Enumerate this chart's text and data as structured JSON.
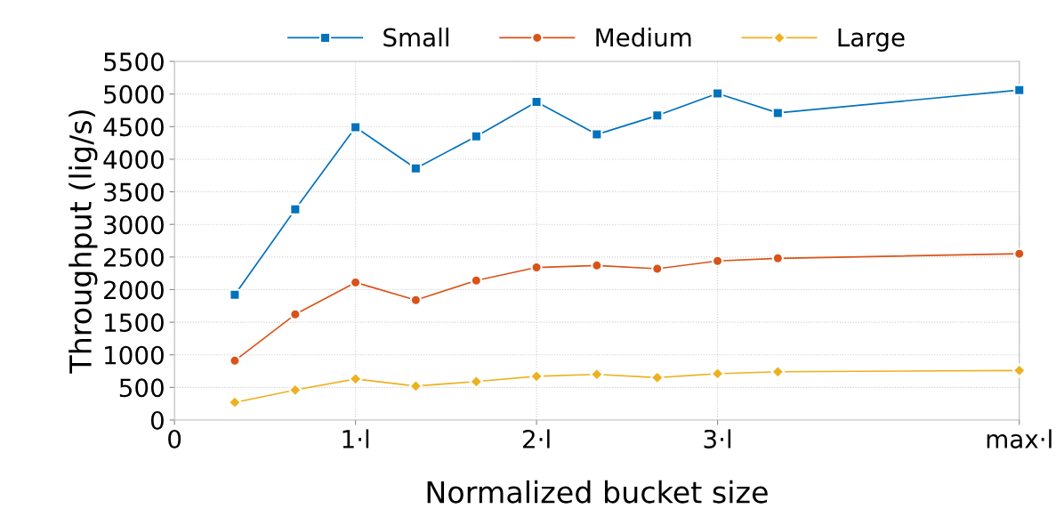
{
  "chart_data": {
    "type": "line",
    "xlabel": "Normalized bucket size",
    "ylabel": "Throughput (lig/s)",
    "x": [
      0.333,
      0.667,
      1,
      1.333,
      1.667,
      2,
      2.333,
      2.667,
      3,
      3.333,
      4.667
    ],
    "series": [
      {
        "name": "Small",
        "color": "#0072bd",
        "marker": "square",
        "values": [
          1920,
          3230,
          4490,
          3860,
          4350,
          4880,
          4380,
          4670,
          5010,
          4710,
          5060
        ]
      },
      {
        "name": "Medium",
        "color": "#d95319",
        "marker": "circle",
        "values": [
          910,
          1620,
          2110,
          1840,
          2140,
          2340,
          2370,
          2320,
          2440,
          2480,
          2550
        ]
      },
      {
        "name": "Large",
        "color": "#edb120",
        "marker": "diamond",
        "values": [
          270,
          460,
          630,
          520,
          590,
          670,
          700,
          650,
          710,
          740,
          760
        ]
      }
    ],
    "xlim": [
      0,
      4.667
    ],
    "xticks": [
      0,
      {
        "value": 1,
        "label": "1·l"
      },
      {
        "value": 2,
        "label": "2·l"
      },
      {
        "value": 3,
        "label": "3·l"
      },
      {
        "value": 4.667,
        "label": "max·l"
      }
    ],
    "ylim": [
      0,
      5500
    ],
    "yticks": [
      0,
      500,
      1000,
      1500,
      2000,
      2500,
      3000,
      3500,
      4000,
      4500,
      5000,
      5500
    ],
    "grid": true,
    "legend": "top",
    "line_style": "solid"
  }
}
